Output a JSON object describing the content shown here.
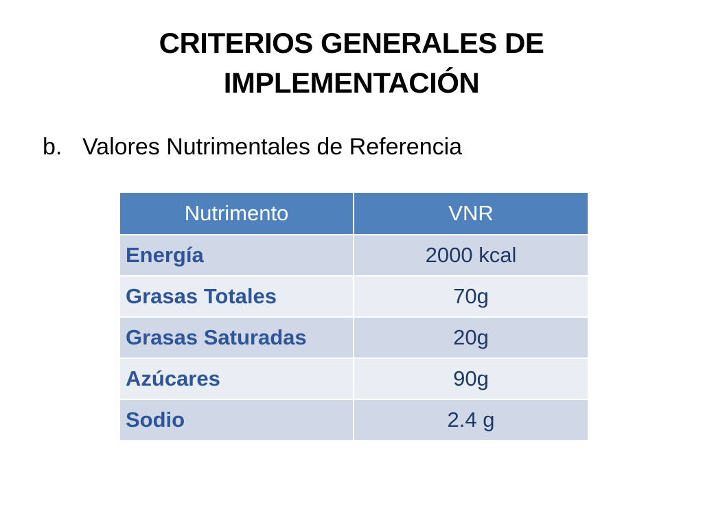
{
  "slide": {
    "title_lines": [
      "CRITERIOS GENERALES DE",
      "IMPLEMENTACIÓN"
    ],
    "bullet": {
      "marker": "b.",
      "text": "Valores Nutrimentales de Referencia"
    }
  },
  "table": {
    "headers": [
      "Nutrimento",
      "VNR"
    ],
    "rows": [
      {
        "nutriente": "Energía",
        "vnr": "2000 kcal"
      },
      {
        "nutriente": "Grasas Totales",
        "vnr": "70g"
      },
      {
        "nutriente": "Grasas Saturadas",
        "vnr": "20g"
      },
      {
        "nutriente": "Azúcares",
        "vnr": "90g"
      },
      {
        "nutriente": "Sodio",
        "vnr": "2.4 g"
      }
    ]
  },
  "colors": {
    "header_bg": "#4f81bd",
    "row_odd_bg": "#d0d8e8",
    "row_even_bg": "#e9edf4",
    "name_text": "#2e5597",
    "value_text": "#1f3864"
  }
}
